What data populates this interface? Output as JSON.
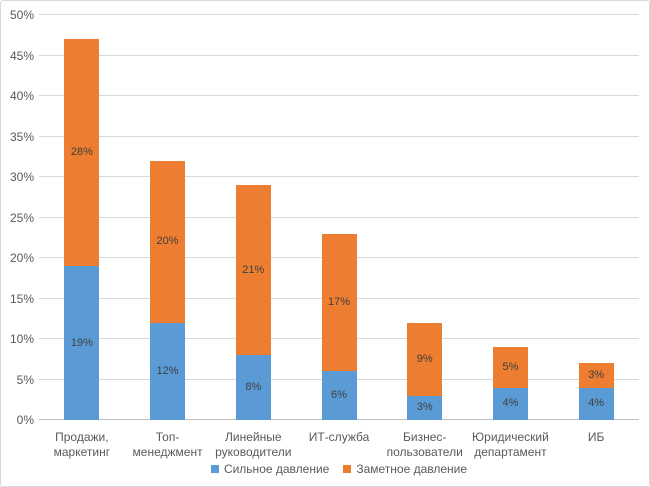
{
  "chart_data": {
    "type": "bar",
    "stacked": true,
    "title": "",
    "xlabel": "",
    "ylabel": "",
    "categories": [
      "Продажи, маркетинг",
      "Топ-менеджмент",
      "Линейные руководители",
      "ИТ-служба",
      "Бизнес-пользователи",
      "Юридический департамент",
      "ИБ"
    ],
    "series": [
      {
        "name": "Сильное давление",
        "color": "#5B9BD5",
        "values": [
          19,
          12,
          8,
          6,
          3,
          4,
          4
        ]
      },
      {
        "name": "Заметное давление",
        "color": "#ED7D31",
        "values": [
          28,
          20,
          21,
          17,
          9,
          5,
          3
        ]
      }
    ],
    "value_labels": true,
    "value_label_format": "{v}%",
    "ylim": [
      0,
      50
    ],
    "ytick_step": 5,
    "ytick_format": "{v}%",
    "grid": true,
    "legend_position": "bottom",
    "colors": {
      "background": "#FFFFFF",
      "border": "#D9D9D9",
      "gridline": "#D9D9D9",
      "axis_line": "#BFBFBF",
      "axis_label": "#595959",
      "data_label": "#3F3F3F",
      "legend_label": "#595959"
    }
  }
}
